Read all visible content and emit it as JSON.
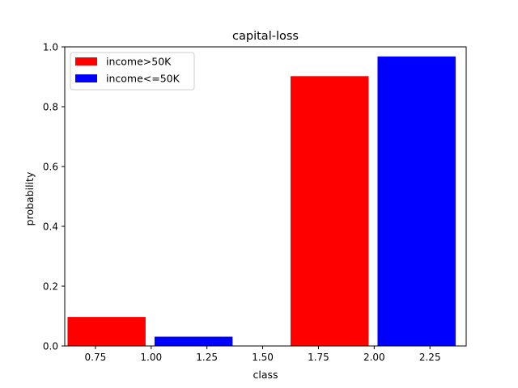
{
  "chart_data": {
    "type": "bar",
    "title": "capital-loss",
    "xlabel": "class",
    "ylabel": "probability",
    "xlim": [
      0.6125,
      2.4125
    ],
    "ylim": [
      0.0,
      1.0
    ],
    "x_ticks": [
      0.75,
      1.0,
      1.25,
      1.5,
      1.75,
      2.0,
      2.25
    ],
    "x_tick_labels": [
      "0.75",
      "1.00",
      "1.25",
      "1.50",
      "1.75",
      "2.00",
      "2.25"
    ],
    "y_ticks": [
      0.0,
      0.2,
      0.4,
      0.6,
      0.8,
      1.0
    ],
    "y_tick_labels": [
      "0.0",
      "0.2",
      "0.4",
      "0.6",
      "0.8",
      "1.0"
    ],
    "bar_width": 0.35,
    "grid": false,
    "legend_position": "upper-left",
    "series": [
      {
        "name": "income>50K",
        "color": "#ff0000",
        "x": [
          0.8,
          1.8
        ],
        "values": [
          0.097,
          0.902
        ]
      },
      {
        "name": "income<=50K",
        "color": "#0000ff",
        "x": [
          1.19,
          2.19
        ],
        "values": [
          0.031,
          0.968
        ]
      }
    ]
  }
}
